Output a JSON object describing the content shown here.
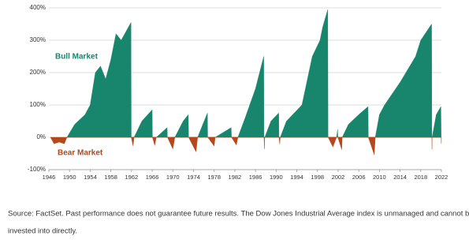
{
  "chart_data": {
    "type": "area",
    "series": [
      {
        "name": "Bull Market",
        "color": "#17866c",
        "x": [
          1949.5,
          1951,
          1953,
          1954,
          1955,
          1956,
          1957,
          1958,
          1959,
          1960,
          1961.9,
          1961.95,
          1962.5,
          1964,
          1966,
          1966.05,
          1966.8,
          1968.9,
          1968.95,
          1970.4,
          1972,
          1973,
          1973.05,
          1974.8,
          1976.7,
          1976.75,
          1978.2,
          1981.3,
          1981.35,
          1982.6,
          1984,
          1986,
          1987.6,
          1987.65,
          1987.8,
          1989,
          1990.5,
          1990.55,
          1990.8,
          1992,
          1995,
          1997,
          1998.5,
          1999,
          2000,
          2000.05,
          2001.7,
          2001.9,
          2001.95,
          2002.8,
          2004,
          2006,
          2007.8,
          2007.85,
          2009.2,
          2010,
          2011,
          2014,
          2017,
          2018,
          2020.1,
          2020.15,
          2020.2,
          2021,
          2021.9,
          2021.95
        ],
        "values": [
          0,
          40,
          70,
          100,
          200,
          220,
          180,
          240,
          320,
          300,
          355,
          0,
          0,
          50,
          85,
          0,
          0,
          30,
          0,
          0,
          50,
          70,
          0,
          0,
          75,
          0,
          0,
          30,
          0,
          0,
          60,
          150,
          250,
          0,
          0,
          50,
          75,
          0,
          0,
          50,
          100,
          250,
          300,
          340,
          395,
          0,
          0,
          25,
          0,
          0,
          40,
          70,
          95,
          0,
          0,
          70,
          100,
          170,
          250,
          300,
          350,
          0,
          0,
          70,
          95,
          0
        ]
      },
      {
        "name": "Bear Market",
        "color": "#b4471b",
        "x": [
          1946.3,
          1947,
          1948,
          1949,
          1949.5,
          1961.95,
          1962.3,
          1962.5,
          1966.05,
          1966.5,
          1966.8,
          1968.95,
          1970,
          1970.4,
          1973.05,
          1974.5,
          1974.8,
          1976.75,
          1978,
          1978.2,
          1981.35,
          1982.3,
          1982.6,
          1987.65,
          1987.75,
          1987.8,
          1990.55,
          1990.7,
          1990.8,
          2000.05,
          2001,
          2001.7,
          2001.95,
          2002.7,
          2002.8,
          2007.85,
          2009,
          2009.2,
          2020.15,
          2020.18,
          2020.2,
          2021.95,
          2021.98,
          2022
        ],
        "values": [
          0,
          -20,
          -15,
          -20,
          0,
          0,
          -27,
          0,
          0,
          -25,
          0,
          0,
          -36,
          0,
          0,
          -45,
          0,
          0,
          -27,
          0,
          0,
          -24,
          0,
          0,
          -36,
          0,
          0,
          -21,
          0,
          0,
          -30,
          0,
          0,
          -38,
          0,
          0,
          -54,
          0,
          0,
          -37,
          0,
          0,
          -19,
          0
        ]
      }
    ],
    "xlim": [
      1946,
      2022
    ],
    "xticks": [
      1946,
      1950,
      1954,
      1958,
      1962,
      1966,
      1970,
      1974,
      1978,
      1982,
      1986,
      1990,
      1994,
      1998,
      2002,
      2006,
      2010,
      2014,
      2018,
      2022
    ],
    "ylim": [
      -100,
      400
    ],
    "yticks": [
      {
        "value": -100,
        "label": "-100%"
      },
      {
        "value": 0,
        "label": "0%"
      },
      {
        "value": 100,
        "label": "100%"
      },
      {
        "value": 200,
        "label": "200%"
      },
      {
        "value": 300,
        "label": "300%"
      },
      {
        "value": 400,
        "label": "400%"
      }
    ],
    "grid": true,
    "source": [
      "Source: FactSet. Past performance does not guarantee future results. The Dow Jones Industrial Average index is unmanaged and cannot be",
      "invested into directly."
    ]
  }
}
